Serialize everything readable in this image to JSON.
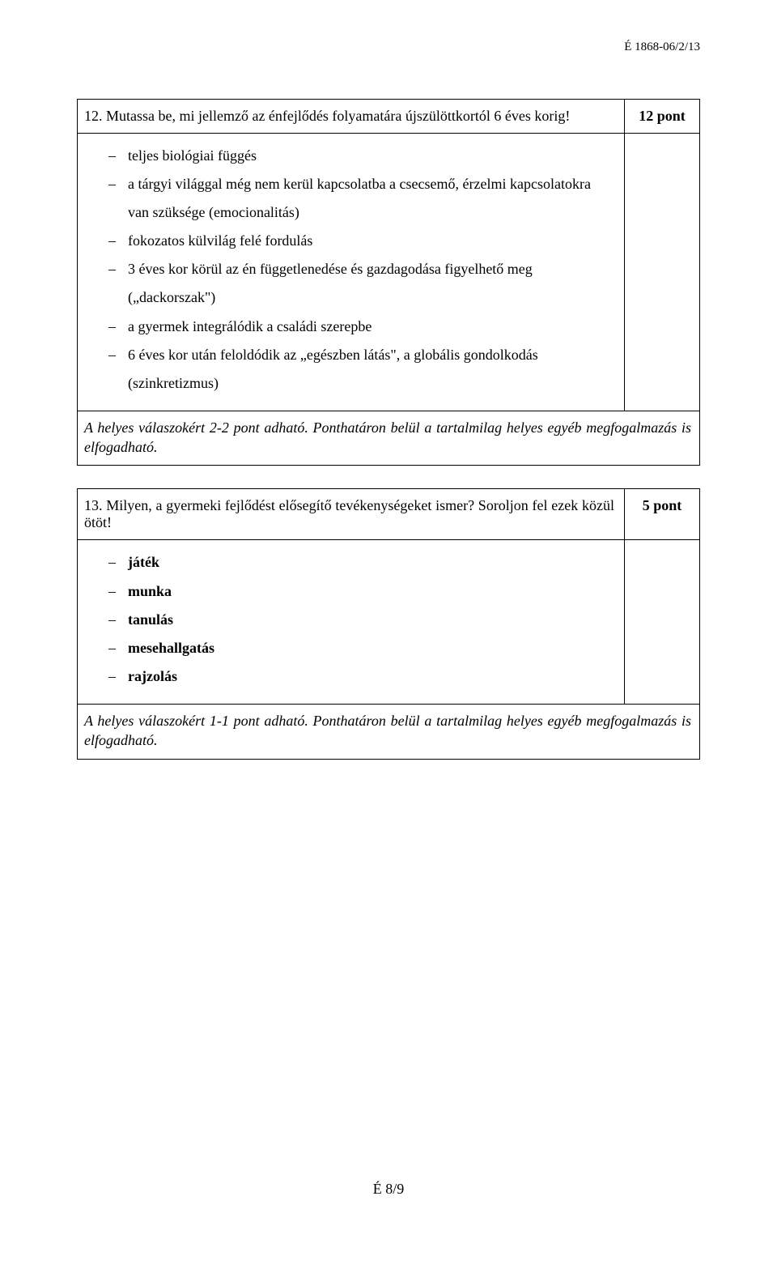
{
  "header": {
    "code": "É 1868-06/2/13"
  },
  "box1": {
    "question": "12. Mutassa be, mi jellemző az énfejlődés folyamatára újszülöttkortól 6 éves korig!",
    "points": "12 pont",
    "items": [
      "teljes biológiai függés",
      "a tárgyi világgal még nem kerül kapcsolatba a csecsemő, érzelmi kapcsolatokra van szüksége (emocionalitás)",
      "fokozatos külvilág felé fordulás",
      "3 éves kor körül az én függetlenedése és gazdagodása figyelhető meg („dackorszak\")",
      "a gyermek integrálódik a családi szerepbe",
      "6 éves kor után feloldódik az „egészben látás\", a globális gondolkodás (szinkretizmus)"
    ],
    "note": "A helyes válaszokért 2-2 pont adható. Ponthatáron belül a tartalmilag helyes egyéb megfogalmazás is elfogadható."
  },
  "box2": {
    "question": "13. Milyen, a gyermeki fejlődést elősegítő tevékenységeket ismer? Soroljon fel ezek közül ötöt!",
    "points": "5 pont",
    "items": [
      "játék",
      "munka",
      "tanulás",
      "mesehallgatás",
      "rajzolás"
    ],
    "note": "A helyes válaszokért 1-1 pont adható. Ponthatáron belül a tartalmilag helyes egyéb megfogalmazás is elfogadható."
  },
  "footer": {
    "page": "É 8/9"
  },
  "colors": {
    "text": "#000000",
    "background": "#ffffff",
    "border": "#000000"
  },
  "typography": {
    "family": "Times New Roman",
    "body_size_pt": 12,
    "line_height": 1.95
  }
}
